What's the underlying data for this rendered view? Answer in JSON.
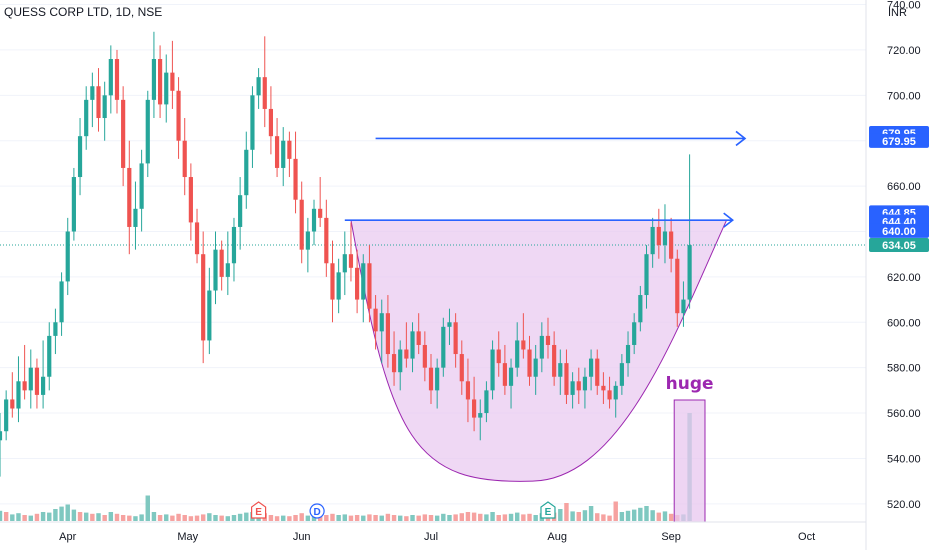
{
  "header": {
    "title": "QUESS CORP LTD, 1D, NSE"
  },
  "chart_data": {
    "type": "candlestick",
    "title": "QUESS CORP LTD, 1D, NSE",
    "currency_label": "INR",
    "ylim": [
      512,
      742
    ],
    "y_ticks": [
      "740.00",
      "720.00",
      "700.00",
      "680.00",
      "660.00",
      "640.00",
      "620.00",
      "600.00",
      "580.00",
      "560.00",
      "540.00",
      "520.00"
    ],
    "y_tick_values": [
      740,
      720,
      700,
      680,
      660,
      640,
      620,
      600,
      580,
      560,
      540,
      520
    ],
    "x_ticks": [
      "Apr",
      "May",
      "Jun",
      "Jul",
      "Aug",
      "Sep",
      "Oct"
    ],
    "x_tick_days": [
      22,
      61,
      98,
      140,
      181,
      218,
      262
    ],
    "day_range": [
      0,
      280
    ],
    "colors": {
      "up": "#26a69a",
      "down": "#ef5350",
      "up_vol": "#7fc8c0",
      "down_vol": "#f6a2a0",
      "arrow": "#2962ff",
      "cup_fill": "#e8c7ef",
      "cup_line": "#9c27b0",
      "price_tag": "#2962ff",
      "last_tag": "#26a69a",
      "label_purple": "#9c27b0"
    },
    "candles": [
      [
        0,
        548,
        560,
        532,
        552
      ],
      [
        2,
        552,
        570,
        548,
        566
      ],
      [
        4,
        566,
        578,
        558,
        562
      ],
      [
        6,
        562,
        585,
        556,
        574
      ],
      [
        8,
        574,
        590,
        566,
        570
      ],
      [
        10,
        570,
        588,
        562,
        580
      ],
      [
        12,
        580,
        584,
        562,
        568
      ],
      [
        14,
        568,
        592,
        562,
        576
      ],
      [
        16,
        576,
        600,
        570,
        594
      ],
      [
        18,
        594,
        606,
        586,
        600
      ],
      [
        20,
        600,
        622,
        594,
        618
      ],
      [
        22,
        618,
        646,
        612,
        640
      ],
      [
        24,
        640,
        668,
        636,
        664
      ],
      [
        26,
        664,
        690,
        656,
        682
      ],
      [
        28,
        682,
        704,
        676,
        698
      ],
      [
        30,
        698,
        710,
        686,
        704
      ],
      [
        32,
        704,
        712,
        684,
        690
      ],
      [
        34,
        690,
        706,
        680,
        700
      ],
      [
        36,
        700,
        722,
        692,
        716
      ],
      [
        38,
        716,
        720,
        692,
        698
      ],
      [
        40,
        698,
        704,
        660,
        668
      ],
      [
        42,
        668,
        680,
        630,
        642
      ],
      [
        44,
        642,
        662,
        632,
        650
      ],
      [
        46,
        650,
        676,
        640,
        670
      ],
      [
        48,
        670,
        702,
        664,
        698
      ],
      [
        50,
        698,
        728,
        690,
        716
      ],
      [
        52,
        716,
        722,
        690,
        696
      ],
      [
        54,
        696,
        718,
        688,
        710
      ],
      [
        56,
        710,
        724,
        694,
        702
      ],
      [
        58,
        702,
        708,
        672,
        680
      ],
      [
        60,
        680,
        690,
        656,
        664
      ],
      [
        62,
        664,
        670,
        636,
        644
      ],
      [
        64,
        644,
        650,
        626,
        630
      ],
      [
        66,
        630,
        640,
        582,
        592
      ],
      [
        68,
        592,
        624,
        586,
        614
      ],
      [
        70,
        614,
        640,
        608,
        632
      ],
      [
        72,
        632,
        636,
        614,
        620
      ],
      [
        74,
        620,
        640,
        612,
        626
      ],
      [
        76,
        626,
        646,
        618,
        642
      ],
      [
        78,
        642,
        664,
        632,
        656
      ],
      [
        80,
        656,
        684,
        650,
        676
      ],
      [
        82,
        676,
        704,
        668,
        700
      ],
      [
        84,
        700,
        712,
        694,
        708
      ],
      [
        86,
        708,
        726,
        686,
        694
      ],
      [
        88,
        694,
        704,
        674,
        682
      ],
      [
        90,
        682,
        690,
        664,
        668
      ],
      [
        92,
        668,
        686,
        660,
        680
      ],
      [
        94,
        680,
        684,
        664,
        672
      ],
      [
        96,
        672,
        684,
        648,
        654
      ],
      [
        98,
        654,
        662,
        626,
        632
      ],
      [
        100,
        632,
        646,
        622,
        640
      ],
      [
        102,
        640,
        654,
        634,
        650
      ],
      [
        104,
        650,
        664,
        642,
        646
      ],
      [
        106,
        646,
        654,
        620,
        626
      ],
      [
        108,
        626,
        636,
        600,
        610
      ],
      [
        110,
        610,
        628,
        604,
        622
      ],
      [
        112,
        622,
        640,
        612,
        630
      ],
      [
        114,
        630,
        644,
        618,
        624
      ],
      [
        116,
        624,
        632,
        604,
        610
      ],
      [
        118,
        610,
        630,
        600,
        626
      ],
      [
        120,
        626,
        634,
        600,
        606
      ],
      [
        122,
        606,
        612,
        588,
        596
      ],
      [
        124,
        596,
        610,
        582,
        604
      ],
      [
        126,
        604,
        612,
        580,
        586
      ],
      [
        128,
        586,
        596,
        572,
        578
      ],
      [
        130,
        578,
        592,
        570,
        588
      ],
      [
        132,
        588,
        600,
        580,
        584
      ],
      [
        134,
        584,
        600,
        578,
        596
      ],
      [
        136,
        596,
        604,
        586,
        590
      ],
      [
        138,
        590,
        596,
        574,
        580
      ],
      [
        140,
        580,
        586,
        564,
        570
      ],
      [
        142,
        570,
        584,
        562,
        580
      ],
      [
        144,
        580,
        602,
        576,
        598
      ],
      [
        146,
        598,
        606,
        590,
        600
      ],
      [
        148,
        600,
        604,
        580,
        586
      ],
      [
        150,
        586,
        592,
        568,
        574
      ],
      [
        152,
        574,
        584,
        556,
        566
      ],
      [
        154,
        566,
        576,
        552,
        558
      ],
      [
        156,
        558,
        566,
        548,
        560
      ],
      [
        158,
        560,
        574,
        556,
        570
      ],
      [
        160,
        570,
        592,
        566,
        588
      ],
      [
        162,
        588,
        596,
        576,
        582
      ],
      [
        164,
        582,
        590,
        568,
        572
      ],
      [
        166,
        572,
        584,
        562,
        580
      ],
      [
        168,
        580,
        600,
        576,
        592
      ],
      [
        170,
        592,
        604,
        584,
        588
      ],
      [
        172,
        588,
        594,
        572,
        576
      ],
      [
        174,
        576,
        590,
        568,
        584
      ],
      [
        176,
        584,
        600,
        578,
        594
      ],
      [
        178,
        594,
        602,
        584,
        590
      ],
      [
        180,
        590,
        596,
        572,
        576
      ],
      [
        182,
        576,
        588,
        568,
        582
      ],
      [
        184,
        582,
        588,
        564,
        568
      ],
      [
        186,
        568,
        578,
        562,
        574
      ],
      [
        188,
        574,
        580,
        564,
        570
      ],
      [
        190,
        570,
        580,
        562,
        576
      ],
      [
        192,
        576,
        588,
        570,
        584
      ],
      [
        194,
        584,
        588,
        568,
        572
      ],
      [
        196,
        572,
        578,
        564,
        570
      ],
      [
        198,
        570,
        576,
        562,
        566
      ],
      [
        200,
        566,
        574,
        558,
        572
      ],
      [
        202,
        572,
        586,
        568,
        582
      ],
      [
        204,
        582,
        596,
        576,
        590
      ],
      [
        206,
        590,
        604,
        586,
        600
      ],
      [
        208,
        600,
        616,
        596,
        612
      ],
      [
        210,
        612,
        634,
        606,
        630
      ],
      [
        212,
        630,
        646,
        624,
        642
      ],
      [
        214,
        642,
        650,
        628,
        634
      ],
      [
        216,
        634,
        652,
        626,
        640
      ],
      [
        218,
        640,
        646,
        622,
        628
      ],
      [
        220,
        628,
        632,
        598,
        604
      ],
      [
        222,
        604,
        618,
        598,
        610
      ],
      [
        224,
        610,
        674,
        606,
        634
      ]
    ],
    "volumes": [
      [
        0,
        0.34,
        "up"
      ],
      [
        2,
        0.3,
        "down"
      ],
      [
        4,
        0.22,
        "up"
      ],
      [
        6,
        0.26,
        "up"
      ],
      [
        8,
        0.2,
        "down"
      ],
      [
        10,
        0.18,
        "up"
      ],
      [
        12,
        0.24,
        "down"
      ],
      [
        14,
        0.3,
        "up"
      ],
      [
        16,
        0.28,
        "up"
      ],
      [
        18,
        0.4,
        "up"
      ],
      [
        20,
        0.48,
        "up"
      ],
      [
        22,
        0.55,
        "up"
      ],
      [
        24,
        0.38,
        "up"
      ],
      [
        26,
        0.3,
        "down"
      ],
      [
        28,
        0.28,
        "up"
      ],
      [
        30,
        0.24,
        "down"
      ],
      [
        32,
        0.26,
        "up"
      ],
      [
        34,
        0.2,
        "down"
      ],
      [
        36,
        0.3,
        "up"
      ],
      [
        38,
        0.24,
        "down"
      ],
      [
        40,
        0.2,
        "down"
      ],
      [
        42,
        0.18,
        "down"
      ],
      [
        44,
        0.16,
        "up"
      ],
      [
        46,
        0.22,
        "up"
      ],
      [
        48,
        0.85,
        "up"
      ],
      [
        50,
        0.3,
        "up"
      ],
      [
        52,
        0.2,
        "down"
      ],
      [
        54,
        0.22,
        "up"
      ],
      [
        56,
        0.18,
        "down"
      ],
      [
        58,
        0.24,
        "down"
      ],
      [
        60,
        0.2,
        "down"
      ],
      [
        62,
        0.16,
        "down"
      ],
      [
        64,
        0.18,
        "down"
      ],
      [
        66,
        0.22,
        "down"
      ],
      [
        68,
        0.26,
        "up"
      ],
      [
        70,
        0.2,
        "up"
      ],
      [
        72,
        0.18,
        "down"
      ],
      [
        74,
        0.16,
        "up"
      ],
      [
        76,
        0.2,
        "up"
      ],
      [
        78,
        0.24,
        "up"
      ],
      [
        80,
        0.28,
        "up"
      ],
      [
        82,
        0.3,
        "up"
      ],
      [
        84,
        0.22,
        "up"
      ],
      [
        86,
        0.26,
        "down"
      ],
      [
        88,
        0.2,
        "down"
      ],
      [
        90,
        0.16,
        "down"
      ],
      [
        92,
        0.18,
        "up"
      ],
      [
        94,
        0.16,
        "down"
      ],
      [
        96,
        0.2,
        "down"
      ],
      [
        98,
        0.26,
        "down"
      ],
      [
        100,
        0.18,
        "up"
      ],
      [
        102,
        0.22,
        "up"
      ],
      [
        104,
        0.16,
        "down"
      ],
      [
        106,
        0.2,
        "down"
      ],
      [
        108,
        0.24,
        "down"
      ],
      [
        110,
        0.2,
        "up"
      ],
      [
        112,
        0.22,
        "up"
      ],
      [
        114,
        0.18,
        "down"
      ],
      [
        116,
        0.2,
        "down"
      ],
      [
        118,
        0.18,
        "up"
      ],
      [
        120,
        0.22,
        "down"
      ],
      [
        122,
        0.2,
        "down"
      ],
      [
        124,
        0.18,
        "up"
      ],
      [
        126,
        0.24,
        "down"
      ],
      [
        128,
        0.2,
        "down"
      ],
      [
        130,
        0.18,
        "up"
      ],
      [
        132,
        0.16,
        "down"
      ],
      [
        134,
        0.2,
        "up"
      ],
      [
        136,
        0.18,
        "down"
      ],
      [
        138,
        0.22,
        "down"
      ],
      [
        140,
        0.2,
        "down"
      ],
      [
        142,
        0.18,
        "up"
      ],
      [
        144,
        0.24,
        "up"
      ],
      [
        146,
        0.2,
        "up"
      ],
      [
        148,
        0.22,
        "down"
      ],
      [
        150,
        0.26,
        "down"
      ],
      [
        152,
        0.3,
        "down"
      ],
      [
        154,
        0.28,
        "down"
      ],
      [
        156,
        0.24,
        "down"
      ],
      [
        158,
        0.22,
        "up"
      ],
      [
        160,
        0.3,
        "up"
      ],
      [
        162,
        0.2,
        "down"
      ],
      [
        164,
        0.22,
        "down"
      ],
      [
        166,
        0.24,
        "up"
      ],
      [
        168,
        0.28,
        "up"
      ],
      [
        170,
        0.22,
        "down"
      ],
      [
        172,
        0.24,
        "down"
      ],
      [
        174,
        0.2,
        "up"
      ],
      [
        176,
        0.26,
        "up"
      ],
      [
        178,
        0.22,
        "down"
      ],
      [
        180,
        0.28,
        "down"
      ],
      [
        182,
        0.4,
        "up"
      ],
      [
        184,
        0.6,
        "down"
      ],
      [
        186,
        0.32,
        "up"
      ],
      [
        188,
        0.3,
        "down"
      ],
      [
        190,
        0.36,
        "up"
      ],
      [
        192,
        0.5,
        "up"
      ],
      [
        194,
        0.26,
        "down"
      ],
      [
        196,
        0.22,
        "down"
      ],
      [
        198,
        0.18,
        "down"
      ],
      [
        200,
        0.65,
        "down"
      ],
      [
        202,
        0.3,
        "up"
      ],
      [
        204,
        0.34,
        "up"
      ],
      [
        206,
        0.38,
        "up"
      ],
      [
        208,
        0.44,
        "up"
      ],
      [
        210,
        0.5,
        "up"
      ],
      [
        212,
        0.36,
        "up"
      ],
      [
        214,
        0.28,
        "down"
      ],
      [
        216,
        0.32,
        "up"
      ],
      [
        218,
        0.24,
        "down"
      ],
      [
        220,
        0.2,
        "down"
      ],
      [
        222,
        0.22,
        "up"
      ],
      [
        224,
        3.6,
        "up"
      ]
    ],
    "horizontal_arrows": [
      {
        "from_day": 122,
        "to_day": 242,
        "price": 681
      },
      {
        "from_day": 112,
        "to_day": 238,
        "price": 645
      }
    ],
    "cup": {
      "left_day": 114,
      "left_price": 645,
      "bottom_day": 173,
      "bottom_price": 530,
      "right_day": 236,
      "right_price": 645
    },
    "volume_highlight": {
      "from_day": 219,
      "to_day": 229
    },
    "volume_label": "huge",
    "events": [
      {
        "day": 84,
        "kind": "earnings",
        "letter": "E"
      },
      {
        "day": 103,
        "kind": "dividend",
        "letter": "D"
      },
      {
        "day": 178,
        "kind": "earnings",
        "letter": "E"
      }
    ],
    "last_price_line": 634.05,
    "price_tags": [
      {
        "label": "679.95",
        "price": 683.4,
        "color": "#2962ff"
      },
      {
        "label": "679.95",
        "price": 679.95,
        "color": "#2962ff"
      },
      {
        "label": "644.85",
        "price": 648.4,
        "color": "#2962ff"
      },
      {
        "label": "644.40",
        "price": 644.4,
        "color": "#2962ff"
      },
      {
        "label": "640.00",
        "price": 640.3,
        "color": "#2962ff"
      },
      {
        "label": "634.05",
        "price": 634.05,
        "color": "#26a69a"
      }
    ]
  }
}
